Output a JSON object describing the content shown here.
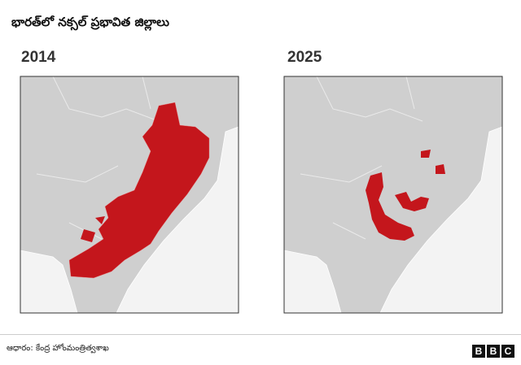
{
  "header": {
    "title": "భారత్‌లో నక్సల్ ప్రభావిత జిల్లాలు"
  },
  "panels": [
    {
      "label": "2014"
    },
    {
      "label": "2025"
    }
  ],
  "footer": {
    "source": "ఆధారం: కేంద్ర హోంమంత్రిత్వశాఖ",
    "logo": [
      "B",
      "B",
      "C"
    ]
  }
}
